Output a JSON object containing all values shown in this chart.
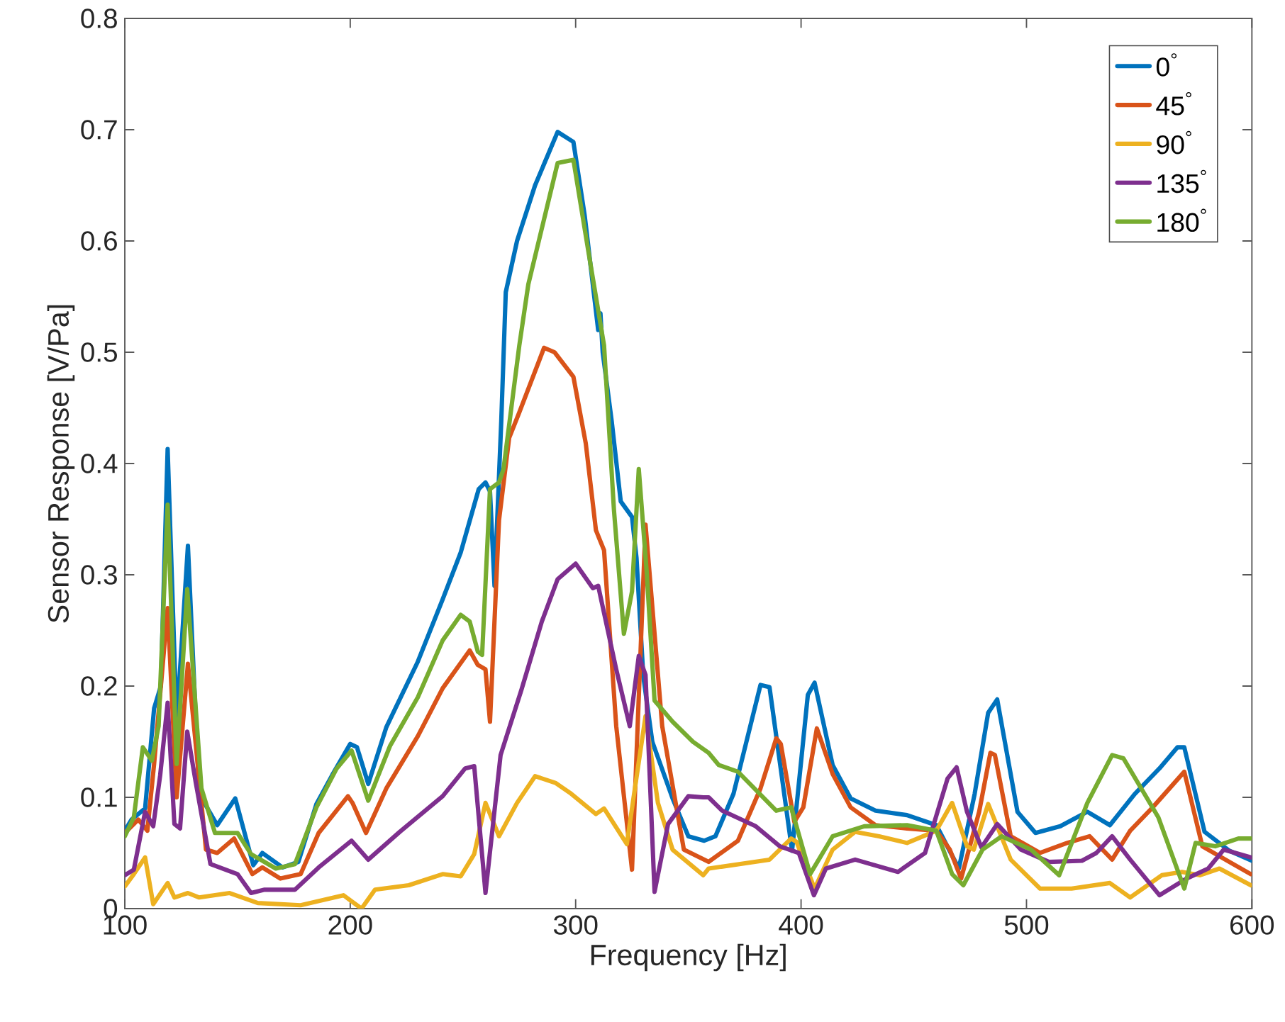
{
  "chart_data": {
    "type": "line",
    "xlabel": "Frequency [Hz]",
    "ylabel": "Sensor Response [V/Pa]",
    "xlim": [
      100,
      600
    ],
    "ylim": [
      0,
      0.8
    ],
    "xticks": [
      100,
      200,
      300,
      400,
      500,
      600
    ],
    "yticks": [
      0,
      0.1,
      0.2,
      0.3,
      0.4,
      0.5,
      0.6,
      0.7,
      0.8
    ],
    "grid": false,
    "legend": "top right",
    "marker": "none",
    "line_style": "solid",
    "series": [
      {
        "name": "0$^{°}$",
        "color": "#0072bd",
        "x": [
          100,
          103,
          109,
          113,
          116,
          119,
          123,
          128,
          133,
          141,
          149,
          157,
          161,
          170,
          177,
          185,
          192,
          200,
          203,
          208,
          216,
          230,
          241,
          249,
          257,
          260,
          262,
          264,
          267,
          269,
          274,
          282,
          292,
          299,
          304,
          310,
          311,
          312,
          316,
          320,
          325,
          327,
          330,
          334,
          343,
          350,
          357,
          362,
          370,
          382,
          386,
          396,
          403,
          406,
          414,
          422,
          433,
          447,
          460,
          470,
          477,
          483,
          487,
          496,
          504,
          515,
          527,
          537,
          548,
          559,
          567,
          570,
          579,
          590,
          600
        ],
        "values": [
          0.07,
          0.08,
          0.09,
          0.18,
          0.2,
          0.413,
          0.167,
          0.326,
          0.103,
          0.075,
          0.099,
          0.039,
          0.05,
          0.037,
          0.042,
          0.094,
          0.12,
          0.148,
          0.145,
          0.112,
          0.163,
          0.222,
          0.278,
          0.32,
          0.377,
          0.383,
          0.375,
          0.29,
          0.438,
          0.554,
          0.6,
          0.65,
          0.698,
          0.689,
          0.623,
          0.52,
          0.535,
          0.5,
          0.438,
          0.366,
          0.352,
          0.315,
          0.209,
          0.15,
          0.099,
          0.065,
          0.061,
          0.065,
          0.103,
          0.201,
          0.199,
          0.052,
          0.192,
          0.203,
          0.129,
          0.099,
          0.088,
          0.084,
          0.075,
          0.036,
          0.103,
          0.176,
          0.188,
          0.087,
          0.068,
          0.074,
          0.087,
          0.075,
          0.103,
          0.126,
          0.145,
          0.145,
          0.069,
          0.052,
          0.043
        ]
      },
      {
        "name": "45$^{°}$",
        "color": "#d95319",
        "x": [
          100,
          106,
          110,
          113,
          116,
          119,
          123,
          128,
          136,
          141,
          148.5,
          156.6,
          161,
          169,
          178,
          186,
          199,
          201,
          207,
          216,
          230,
          241,
          253,
          256.6,
          260,
          262,
          266,
          270.5,
          275,
          286,
          290.6,
          299,
          304.5,
          309,
          312.6,
          318,
          325,
          331,
          338.4,
          348,
          359,
          372,
          382,
          389,
          391,
          397,
          401,
          407,
          414,
          422,
          433,
          447,
          460,
          466,
          471,
          479,
          484,
          486,
          493,
          506,
          518,
          528,
          538,
          546,
          556,
          570,
          578,
          590,
          599.5
        ],
        "values": [
          0.068,
          0.08,
          0.07,
          0.13,
          0.2,
          0.27,
          0.1,
          0.22,
          0.053,
          0.05,
          0.063,
          0.031,
          0.037,
          0.027,
          0.031,
          0.068,
          0.101,
          0.095,
          0.068,
          0.108,
          0.155,
          0.198,
          0.232,
          0.219,
          0.215,
          0.168,
          0.349,
          0.423,
          0.446,
          0.504,
          0.5,
          0.478,
          0.418,
          0.34,
          0.322,
          0.164,
          0.035,
          0.345,
          0.164,
          0.053,
          0.042,
          0.061,
          0.108,
          0.153,
          0.148,
          0.078,
          0.091,
          0.162,
          0.121,
          0.091,
          0.075,
          0.072,
          0.07,
          0.053,
          0.027,
          0.087,
          0.14,
          0.138,
          0.065,
          0.05,
          0.059,
          0.065,
          0.044,
          0.07,
          0.091,
          0.123,
          0.056,
          0.042,
          0.031
        ]
      },
      {
        "name": "90$^{°}$",
        "color": "#edb120",
        "x": [
          100,
          104,
          109,
          112.6,
          119,
          122,
          128,
          133,
          146.5,
          159,
          178,
          197,
          205,
          211,
          226,
          241,
          249,
          255,
          260,
          266,
          274,
          282,
          291,
          297.5,
          309,
          312.6,
          322.7,
          327,
          331,
          336.5,
          343,
          356.6,
          359,
          386,
          395.6,
          398,
          406,
          414,
          424,
          434.6,
          447,
          460,
          467,
          473.6,
          476.6,
          483,
          493,
          506,
          520,
          537,
          546,
          560,
          569,
          577,
          585.6,
          599.5
        ],
        "values": [
          0.02,
          0.031,
          0.046,
          0.004,
          0.023,
          0.01,
          0.014,
          0.01,
          0.014,
          0.005,
          0.003,
          0.012,
          0,
          0.017,
          0.021,
          0.031,
          0.029,
          0.049,
          0.095,
          0.065,
          0.095,
          0.119,
          0.113,
          0.104,
          0.085,
          0.09,
          0.058,
          0.118,
          0.173,
          0.095,
          0.053,
          0.03,
          0.036,
          0.044,
          0.063,
          0.06,
          0.018,
          0.053,
          0.069,
          0.065,
          0.059,
          0.07,
          0.095,
          0.056,
          0.053,
          0.094,
          0.044,
          0.018,
          0.018,
          0.023,
          0.01,
          0.03,
          0.033,
          0.03,
          0.036,
          0.021
        ]
      },
      {
        "name": "135$^{°}$",
        "color": "#7e2f8e",
        "x": [
          100,
          104,
          109,
          112.6,
          115.7,
          119,
          122,
          124.5,
          127.7,
          131.5,
          138,
          150,
          156,
          162,
          175.5,
          186,
          200.6,
          208,
          222,
          241,
          251,
          255,
          260,
          266.7,
          276,
          285,
          292,
          300,
          307.6,
          310,
          318,
          324,
          328,
          331,
          335,
          341,
          350,
          356.6,
          359,
          365,
          379.9,
          390.6,
          399,
          405.7,
          411,
          424,
          443,
          455,
          465,
          469,
          473.6,
          480,
          487,
          497.5,
          510,
          524.6,
          531,
          538,
          546,
          559,
          571,
          580.6,
          587.5,
          599.5
        ],
        "values": [
          0.03,
          0.035,
          0.087,
          0.074,
          0.12,
          0.185,
          0.076,
          0.072,
          0.159,
          0.113,
          0.04,
          0.031,
          0.014,
          0.017,
          0.017,
          0.037,
          0.061,
          0.044,
          0.069,
          0.101,
          0.126,
          0.128,
          0.014,
          0.138,
          0.197,
          0.258,
          0.296,
          0.31,
          0.288,
          0.29,
          0.215,
          0.164,
          0.227,
          0.21,
          0.015,
          0.076,
          0.101,
          0.1,
          0.1,
          0.088,
          0.074,
          0.056,
          0.05,
          0.012,
          0.036,
          0.044,
          0.033,
          0.05,
          0.117,
          0.127,
          0.087,
          0.055,
          0.076,
          0.053,
          0.042,
          0.043,
          0.05,
          0.065,
          0.044,
          0.012,
          0.027,
          0.036,
          0.053,
          0.046
        ]
      },
      {
        "name": "180$^{°}$",
        "color": "#77ac30",
        "x": [
          100,
          104,
          108,
          112,
          115,
          119,
          123,
          127.7,
          134,
          140,
          150,
          156,
          167,
          175.5,
          185,
          194,
          200.6,
          208,
          217.6,
          230,
          241,
          249,
          253,
          256.6,
          258.5,
          262,
          266,
          268,
          275,
          279,
          292,
          299,
          305.7,
          312.6,
          317,
          321.4,
          325,
          328,
          331.5,
          335,
          343,
          352,
          359,
          363.5,
          372,
          389,
          395.6,
          404,
          414,
          428,
          447,
          460,
          467,
          472,
          480.5,
          489,
          502,
          514.5,
          527,
          538,
          543,
          558.5,
          570,
          575,
          583.7,
          594,
          599.5
        ],
        "values": [
          0.065,
          0.082,
          0.145,
          0.133,
          0.164,
          0.363,
          0.13,
          0.287,
          0.108,
          0.068,
          0.068,
          0.049,
          0.036,
          0.04,
          0.091,
          0.126,
          0.142,
          0.097,
          0.146,
          0.19,
          0.241,
          0.264,
          0.258,
          0.231,
          0.228,
          0.377,
          0.383,
          0.395,
          0.506,
          0.561,
          0.67,
          0.673,
          0.59,
          0.506,
          0.358,
          0.247,
          0.285,
          0.395,
          0.303,
          0.187,
          0.168,
          0.15,
          0.14,
          0.129,
          0.123,
          0.088,
          0.091,
          0.031,
          0.065,
          0.074,
          0.075,
          0.07,
          0.031,
          0.021,
          0.053,
          0.065,
          0.053,
          0.03,
          0.095,
          0.138,
          0.135,
          0.082,
          0.018,
          0.059,
          0.056,
          0.063,
          0.063
        ]
      }
    ]
  }
}
